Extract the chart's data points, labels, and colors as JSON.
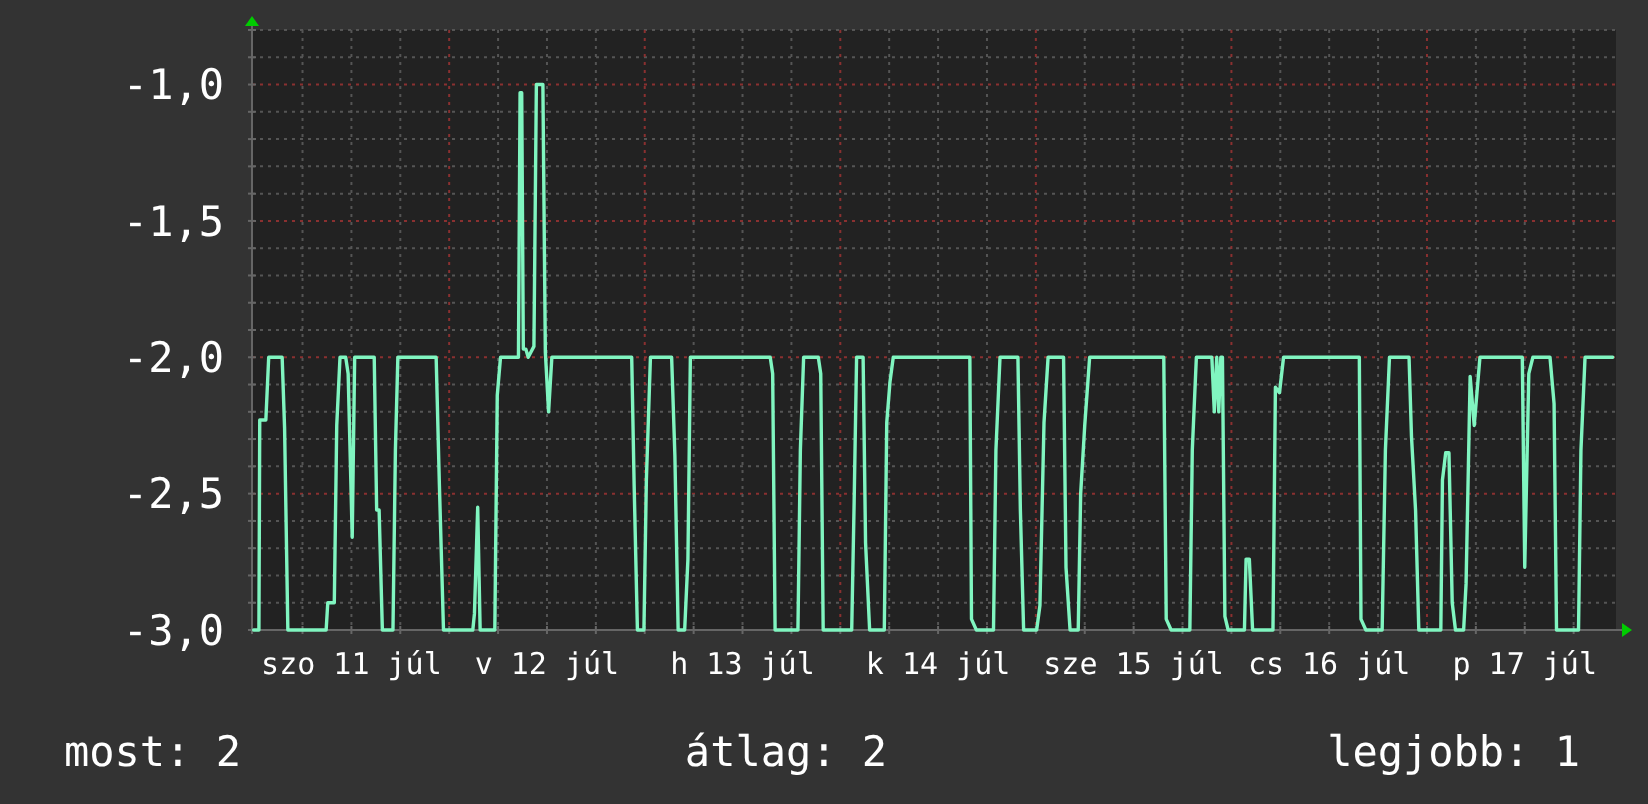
{
  "chart_data": {
    "type": "line",
    "x": [
      "--07-11T00:00",
      "--07-11T00:39",
      "--07-11T00:45",
      "--07-11T01:30",
      "--07-11T01:51",
      "--07-11T03:30",
      "--07-11T03:48",
      "--07-11T04:12",
      "--07-11T08:54",
      "--07-11T09:06",
      "--07-11T09:54",
      "--07-11T10:12",
      "--07-11T10:36",
      "--07-11T11:18",
      "--07-11T11:36",
      "--07-11T12:06",
      "--07-11T12:24",
      "--07-11T14:48",
      "--07-11T15:06",
      "--07-11T15:24",
      "--07-11T15:48",
      "--07-11T17:06",
      "--07-11T17:24",
      "--07-11T17:42",
      "--07-11T22:24",
      "--07-11T22:48",
      "--07-11T23:18",
      "--07-12T02:54",
      "--07-12T03:06",
      "--07-12T03:30",
      "--07-12T03:48",
      "--07-12T05:36",
      "--07-12T05:54",
      "--07-12T06:18",
      "--07-12T08:30",
      "--07-12T08:42",
      "--07-12T08:54",
      "--07-12T09:06",
      "--07-12T09:24",
      "--07-12T09:42",
      "--07-12T10:24",
      "--07-12T10:42",
      "--07-12T11:30",
      "--07-12T11:48",
      "--07-12T12:12",
      "--07-12T12:36",
      "--07-12T22:24",
      "--07-12T22:42",
      "--07-12T23:06",
      "--07-12T23:54",
      "--07-13T00:12",
      "--07-13T00:42",
      "--07-13T03:18",
      "--07-13T03:42",
      "--07-13T04:06",
      "--07-13T04:54",
      "--07-13T05:18",
      "--07-13T05:36",
      "--07-13T15:24",
      "--07-13T15:42",
      "--07-13T16:00",
      "--07-13T18:48",
      "--07-13T19:06",
      "--07-13T19:30",
      "--07-13T21:18",
      "--07-13T21:36",
      "--07-13T21:54",
      "--07-14T01:24",
      "--07-14T01:42",
      "--07-14T02:00",
      "--07-14T02:48",
      "--07-14T03:06",
      "--07-14T03:36",
      "--07-14T05:24",
      "--07-14T05:42",
      "--07-14T06:06",
      "--07-14T06:30",
      "--07-14T15:54",
      "--07-14T16:06",
      "--07-14T16:42",
      "--07-14T18:48",
      "--07-14T19:06",
      "--07-14T19:36",
      "--07-14T21:48",
      "--07-14T22:06",
      "--07-14T22:30",
      "--07-15T00:06",
      "--07-15T00:30",
      "--07-15T01:00",
      "--07-15T01:30",
      "--07-15T03:24",
      "--07-15T03:42",
      "--07-15T04:12",
      "--07-15T05:12",
      "--07-15T05:30",
      "--07-15T06:00",
      "--07-15T06:36",
      "--07-15T15:42",
      "--07-15T16:00",
      "--07-15T16:36",
      "--07-15T18:54",
      "--07-15T19:12",
      "--07-15T19:42",
      "--07-15T21:36",
      "--07-15T21:54",
      "--07-15T22:12",
      "--07-15T22:27",
      "--07-15T22:42",
      "--07-15T22:54",
      "--07-15T23:12",
      "--07-15T23:36",
      "--07-16T01:36",
      "--07-16T01:48",
      "--07-16T02:12",
      "--07-16T02:36",
      "--07-16T05:06",
      "--07-16T05:24",
      "--07-16T05:54",
      "--07-16T06:24",
      "--07-16T15:42",
      "--07-16T15:54",
      "--07-16T16:30",
      "--07-16T18:30",
      "--07-16T18:54",
      "--07-16T19:24",
      "--07-16T21:48",
      "--07-16T22:06",
      "--07-16T22:36",
      "--07-16T23:00",
      "--07-17T01:42",
      "--07-17T01:54",
      "--07-17T02:18",
      "--07-17T02:42",
      "--07-17T03:06",
      "--07-17T03:30",
      "--07-17T04:30",
      "--07-17T04:48",
      "--07-17T05:18",
      "--07-17T05:48",
      "--07-17T06:30",
      "--07-17T11:42",
      "--07-17T12:00",
      "--07-17T12:30",
      "--07-17T13:00",
      "--07-17T15:06",
      "--07-17T15:36",
      "--07-17T15:54",
      "--07-17T18:36",
      "--07-17T18:54",
      "--07-17T19:24",
      "--07-17T22:48"
    ],
    "series": [
      {
        "color": "#80f5c0",
        "values": [
          -3,
          -3,
          -2.23,
          -2.23,
          -2,
          -2,
          -2.26,
          -3,
          -3,
          -2.9,
          -2.9,
          -2.25,
          -2,
          -2,
          -2.06,
          -2.66,
          -2,
          -2,
          -2.56,
          -2.56,
          -3,
          -3,
          -2.34,
          -2,
          -2,
          -2.47,
          -3,
          -3,
          -2.94,
          -2.55,
          -3,
          -3,
          -2.14,
          -2,
          -2,
          -1.03,
          -1.03,
          -1.97,
          -1.97,
          -2,
          -1.96,
          -1,
          -1,
          -1.98,
          -2.2,
          -2,
          -2,
          -2.47,
          -3,
          -3,
          -2.45,
          -2,
          -2,
          -2.36,
          -3,
          -3,
          -2.74,
          -2,
          -2,
          -2.06,
          -3,
          -3,
          -2.34,
          -2,
          -2,
          -2.06,
          -3,
          -3,
          -2.53,
          -2,
          -2,
          -2.68,
          -3,
          -3,
          -2.24,
          -2.09,
          -2,
          -2,
          -2.96,
          -3,
          -3,
          -2.34,
          -2,
          -2,
          -2.56,
          -3,
          -3,
          -2.91,
          -2.24,
          -2,
          -2,
          -2.77,
          -3,
          -3,
          -2.5,
          -2.25,
          -2,
          -2,
          -2.96,
          -3,
          -3,
          -2.34,
          -2,
          -2,
          -2.2,
          -2,
          -2.2,
          -2,
          -2,
          -2.95,
          -3,
          -3,
          -2.74,
          -2.74,
          -3,
          -3,
          -2.11,
          -2.13,
          -2,
          -2,
          -2.96,
          -3,
          -3,
          -2.34,
          -2,
          -2,
          -2.29,
          -2.56,
          -3,
          -3,
          -2.45,
          -2.35,
          -2.35,
          -2.9,
          -3,
          -3,
          -2.83,
          -2.07,
          -2.25,
          -2,
          -2,
          -2.77,
          -2.06,
          -2,
          -2,
          -2.17,
          -3,
          -3,
          -2.34,
          -2,
          -2
        ]
      }
    ],
    "xlim": [
      "--07-10T23:48",
      "--07-17T23:12"
    ],
    "xticks": [
      {
        "value": "--07-11T06:00",
        "label": null
      },
      {
        "value": "--07-11T12:00",
        "label": "szo 11 júl"
      },
      {
        "value": "--07-11T18:00",
        "label": null
      },
      {
        "value": "--07-12T00:00",
        "label": null
      },
      {
        "value": "--07-12T06:00",
        "label": null
      },
      {
        "value": "--07-12T12:00",
        "label": "v 12 júl"
      },
      {
        "value": "--07-12T18:00",
        "label": null
      },
      {
        "value": "--07-13T00:00",
        "label": null
      },
      {
        "value": "--07-13T06:00",
        "label": null
      },
      {
        "value": "--07-13T12:00",
        "label": "h 13 júl"
      },
      {
        "value": "--07-13T18:00",
        "label": null
      },
      {
        "value": "--07-14T00:00",
        "label": null
      },
      {
        "value": "--07-14T06:00",
        "label": null
      },
      {
        "value": "--07-14T12:00",
        "label": "k 14 júl"
      },
      {
        "value": "--07-14T18:00",
        "label": null
      },
      {
        "value": "--07-15T00:00",
        "label": null
      },
      {
        "value": "--07-15T06:00",
        "label": null
      },
      {
        "value": "--07-15T12:00",
        "label": "sze 15 júl"
      },
      {
        "value": "--07-15T18:00",
        "label": null
      },
      {
        "value": "--07-16T00:00",
        "label": null
      },
      {
        "value": "--07-16T06:00",
        "label": null
      },
      {
        "value": "--07-16T12:00",
        "label": "cs 16 júl"
      },
      {
        "value": "--07-16T18:00",
        "label": null
      },
      {
        "value": "--07-17T00:00",
        "label": null
      },
      {
        "value": "--07-17T06:00",
        "label": null
      },
      {
        "value": "--07-17T12:00",
        "label": "p 17 júl"
      },
      {
        "value": "--07-17T18:00",
        "label": null
      }
    ],
    "ylim": [
      -3,
      -0.8
    ],
    "yticks": [
      {
        "value": -3,
        "label": "-3,0"
      },
      {
        "value": -2.9,
        "label": null
      },
      {
        "value": -2.8,
        "label": null
      },
      {
        "value": -2.7,
        "label": null
      },
      {
        "value": -2.6,
        "label": null
      },
      {
        "value": -2.5,
        "label": "-2,5"
      },
      {
        "value": -2.4,
        "label": null
      },
      {
        "value": -2.3,
        "label": null
      },
      {
        "value": -2.2,
        "label": null
      },
      {
        "value": -2.1,
        "label": null
      },
      {
        "value": -2,
        "label": "-2,0"
      },
      {
        "value": -1.9,
        "label": null
      },
      {
        "value": -1.8,
        "label": null
      },
      {
        "value": -1.7,
        "label": null
      },
      {
        "value": -1.6,
        "label": null
      },
      {
        "value": -1.5,
        "label": "-1,5"
      },
      {
        "value": -1.4,
        "label": null
      },
      {
        "value": -1.3,
        "label": null
      },
      {
        "value": -1.2,
        "label": null
      },
      {
        "value": -1.1,
        "label": null
      },
      {
        "value": -1,
        "label": "-1,0"
      },
      {
        "value": -0.9,
        "label": null
      },
      {
        "value": -0.8,
        "label": null
      }
    ],
    "grid": true,
    "annotations": [
      "most: 2",
      "átlag: 2",
      "legjobb: 1"
    ]
  }
}
